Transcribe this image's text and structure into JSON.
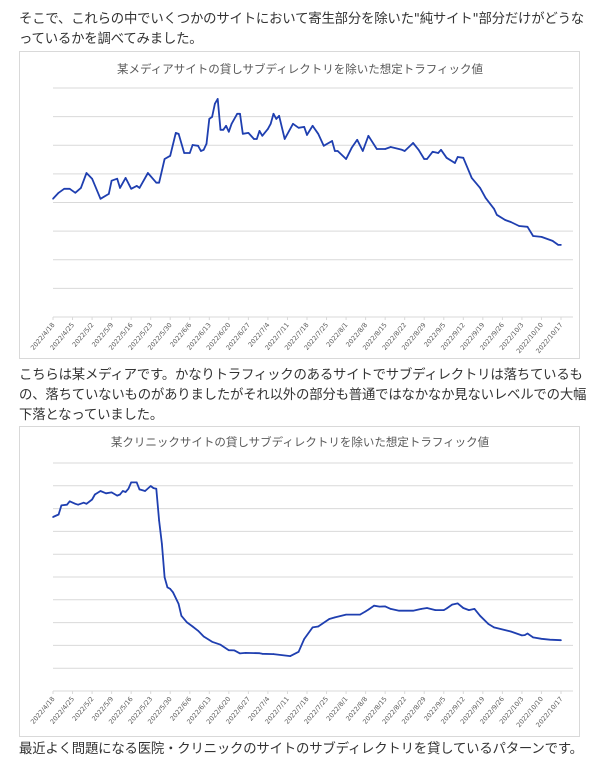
{
  "article": {
    "para1": "そこで、これらの中でいくつかのサイトにおいて寄生部分を除いた\"純サイト\"部分だけがどうなっているかを調べてみました。",
    "para2": "こちらは某メディアです。かなりトラフィックのあるサイトでサブディレクトリは落ちているもの、落ちていないものがありましたがそれ以外の部分も普通ではなかなか見ないレベルでの大幅下落となっていました。",
    "para3": "最近よく問題になる医院・クリニックのサイトのサブディレクトリを貸しているパターンです。"
  },
  "chart_data": [
    {
      "type": "line",
      "title": "某メディアサイトの貸しサブディレクトリを除いた想定トラフィック値",
      "xlabel": "",
      "ylabel": "",
      "ylim": [
        0,
        8
      ],
      "grid": true,
      "y_tick_labels": false,
      "line_color": "#1f3fb0",
      "x_tick_labels": [
        "2022/4/18",
        "2022/4/25",
        "2022/5/2",
        "2022/5/9",
        "2022/5/16",
        "2022/5/23",
        "2022/5/30",
        "2022/6/6",
        "2022/6/13",
        "2022/6/20",
        "2022/6/27",
        "2022/7/4",
        "2022/7/11",
        "2022/7/18",
        "2022/7/25",
        "2022/8/1",
        "2022/8/8",
        "2022/8/15",
        "2022/8/22",
        "2022/8/29",
        "2022/9/5",
        "2022/9/12",
        "2022/9/19",
        "2022/9/26",
        "2022/10/3",
        "2022/10/10",
        "2022/10/17"
      ],
      "x": [
        "2022/4/18",
        "2022/4/20",
        "2022/4/22",
        "2022/4/24",
        "2022/4/26",
        "2022/4/28",
        "2022/4/30",
        "2022/5/2",
        "2022/5/5",
        "2022/5/8",
        "2022/5/9",
        "2022/5/11",
        "2022/5/12",
        "2022/5/14",
        "2022/5/16",
        "2022/5/18",
        "2022/5/19",
        "2022/5/22",
        "2022/5/25",
        "2022/5/26",
        "2022/5/28",
        "2022/5/30",
        "2022/6/1",
        "2022/6/2",
        "2022/6/4",
        "2022/6/6",
        "2022/6/7",
        "2022/6/9",
        "2022/6/10",
        "2022/6/11",
        "2022/6/12",
        "2022/6/13",
        "2022/6/14",
        "2022/6/15",
        "2022/6/16",
        "2022/6/17",
        "2022/6/18",
        "2022/6/19",
        "2022/6/20",
        "2022/6/21",
        "2022/6/23",
        "2022/6/24",
        "2022/6/25",
        "2022/6/27",
        "2022/6/29",
        "2022/6/30",
        "2022/7/1",
        "2022/7/2",
        "2022/7/4",
        "2022/7/5",
        "2022/7/6",
        "2022/7/7",
        "2022/7/8",
        "2022/7/10",
        "2022/7/13",
        "2022/7/15",
        "2022/7/17",
        "2022/7/18",
        "2022/7/20",
        "2022/7/22",
        "2022/7/24",
        "2022/7/27",
        "2022/7/28",
        "2022/7/29",
        "2022/8/1",
        "2022/8/3",
        "2022/8/5",
        "2022/8/7",
        "2022/8/9",
        "2022/8/12",
        "2022/8/15",
        "2022/8/17",
        "2022/8/21",
        "2022/8/22",
        "2022/8/25",
        "2022/8/27",
        "2022/8/29",
        "2022/8/30",
        "2022/9/1",
        "2022/9/3",
        "2022/9/4",
        "2022/9/6",
        "2022/9/9",
        "2022/9/10",
        "2022/9/12",
        "2022/9/15",
        "2022/9/18",
        "2022/9/20",
        "2022/9/23",
        "2022/9/24",
        "2022/9/27",
        "2022/9/29",
        "2022/10/2",
        "2022/10/5",
        "2022/10/7",
        "2022/10/10",
        "2022/10/14",
        "2022/10/16",
        "2022/10/17"
      ],
      "values": [
        4.13,
        4.34,
        4.48,
        4.48,
        4.34,
        4.51,
        5.03,
        4.83,
        4.13,
        4.3,
        4.76,
        4.83,
        4.51,
        4.86,
        4.48,
        4.58,
        4.51,
        5.03,
        4.69,
        4.69,
        5.52,
        5.63,
        6.43,
        6.4,
        5.73,
        5.73,
        6.01,
        5.98,
        5.8,
        5.84,
        6.05,
        6.92,
        6.99,
        7.45,
        7.62,
        6.54,
        6.54,
        6.68,
        6.47,
        6.75,
        7.1,
        7.1,
        6.4,
        6.43,
        6.22,
        6.22,
        6.5,
        6.33,
        6.57,
        6.75,
        7.1,
        6.92,
        7.03,
        6.22,
        6.75,
        6.61,
        6.64,
        6.36,
        6.68,
        6.4,
        5.98,
        6.15,
        5.8,
        5.8,
        5.52,
        5.91,
        6.19,
        5.8,
        6.33,
        5.87,
        5.87,
        5.94,
        5.84,
        5.8,
        6.08,
        5.84,
        5.52,
        5.52,
        5.77,
        5.73,
        5.84,
        5.56,
        5.38,
        5.59,
        5.56,
        4.86,
        4.51,
        4.16,
        3.78,
        3.57,
        3.39,
        3.32,
        3.18,
        3.15,
        2.83,
        2.8,
        2.66,
        2.52,
        2.52
      ]
    },
    {
      "type": "line",
      "title": "某クリニックサイトの貸しサブディレクトリを除いた想定トラフィック値",
      "xlabel": "",
      "ylabel": "",
      "ylim": [
        0,
        10
      ],
      "grid": true,
      "y_tick_labels": false,
      "line_color": "#1f3fb0",
      "x_tick_labels": [
        "2022/4/18",
        "2022/4/25",
        "2022/5/2",
        "2022/5/9",
        "2022/5/16",
        "2022/5/23",
        "2022/5/30",
        "2022/6/6",
        "2022/6/13",
        "2022/6/20",
        "2022/6/27",
        "2022/7/4",
        "2022/7/11",
        "2022/7/18",
        "2022/7/25",
        "2022/8/1",
        "2022/8/8",
        "2022/8/15",
        "2022/8/22",
        "2022/8/29",
        "2022/9/5",
        "2022/9/12",
        "2022/9/19",
        "2022/9/26",
        "2022/10/3",
        "2022/10/10",
        "2022/10/17"
      ],
      "x": [
        "2022/4/18",
        "2022/4/20",
        "2022/4/21",
        "2022/4/23",
        "2022/4/24",
        "2022/4/26",
        "2022/4/27",
        "2022/4/29",
        "2022/4/30",
        "2022/5/2",
        "2022/5/3",
        "2022/5/5",
        "2022/5/7",
        "2022/5/9",
        "2022/5/11",
        "2022/5/12",
        "2022/5/13",
        "2022/5/14",
        "2022/5/15",
        "2022/5/16",
        "2022/5/18",
        "2022/5/19",
        "2022/5/21",
        "2022/5/23",
        "2022/5/24",
        "2022/5/25",
        "2022/5/26",
        "2022/5/27",
        "2022/5/28",
        "2022/5/29",
        "2022/5/30",
        "2022/5/31",
        "2022/6/2",
        "2022/6/3",
        "2022/6/5",
        "2022/6/7",
        "2022/6/9",
        "2022/6/11",
        "2022/6/14",
        "2022/6/17",
        "2022/6/20",
        "2022/6/22",
        "2022/6/24",
        "2022/6/26",
        "2022/7/1",
        "2022/7/2",
        "2022/7/6",
        "2022/7/12",
        "2022/7/15",
        "2022/7/17",
        "2022/7/20",
        "2022/7/22",
        "2022/7/26",
        "2022/7/28",
        "2022/8/1",
        "2022/8/6",
        "2022/8/8",
        "2022/8/9",
        "2022/8/11",
        "2022/8/13",
        "2022/8/15",
        "2022/8/17",
        "2022/8/20",
        "2022/8/23",
        "2022/8/25",
        "2022/8/28",
        "2022/8/30",
        "2022/9/2",
        "2022/9/5",
        "2022/9/6",
        "2022/9/8",
        "2022/9/10",
        "2022/9/12",
        "2022/9/14",
        "2022/9/16",
        "2022/9/18",
        "2022/9/21",
        "2022/9/23",
        "2022/9/29",
        "2022/10/3",
        "2022/10/4",
        "2022/10/5",
        "2022/10/7",
        "2022/10/10",
        "2022/10/13",
        "2022/10/17"
      ],
      "values": [
        7.63,
        7.74,
        8.14,
        8.17,
        8.32,
        8.21,
        8.17,
        8.26,
        8.21,
        8.4,
        8.62,
        8.77,
        8.67,
        8.71,
        8.57,
        8.62,
        8.77,
        8.73,
        8.87,
        9.15,
        9.15,
        8.84,
        8.77,
        8.99,
        8.9,
        8.87,
        7.48,
        6.45,
        4.99,
        4.55,
        4.48,
        4.33,
        3.82,
        3.3,
        3.01,
        2.83,
        2.64,
        2.39,
        2.16,
        2.03,
        1.79,
        1.78,
        1.65,
        1.67,
        1.66,
        1.63,
        1.62,
        1.53,
        1.72,
        2.28,
        2.79,
        2.83,
        3.16,
        3.23,
        3.35,
        3.35,
        3.49,
        3.57,
        3.74,
        3.7,
        3.71,
        3.6,
        3.52,
        3.52,
        3.52,
        3.6,
        3.64,
        3.55,
        3.55,
        3.62,
        3.79,
        3.84,
        3.64,
        3.55,
        3.6,
        3.3,
        2.94,
        2.79,
        2.61,
        2.44,
        2.45,
        2.52,
        2.35,
        2.29,
        2.25,
        2.23
      ]
    }
  ]
}
